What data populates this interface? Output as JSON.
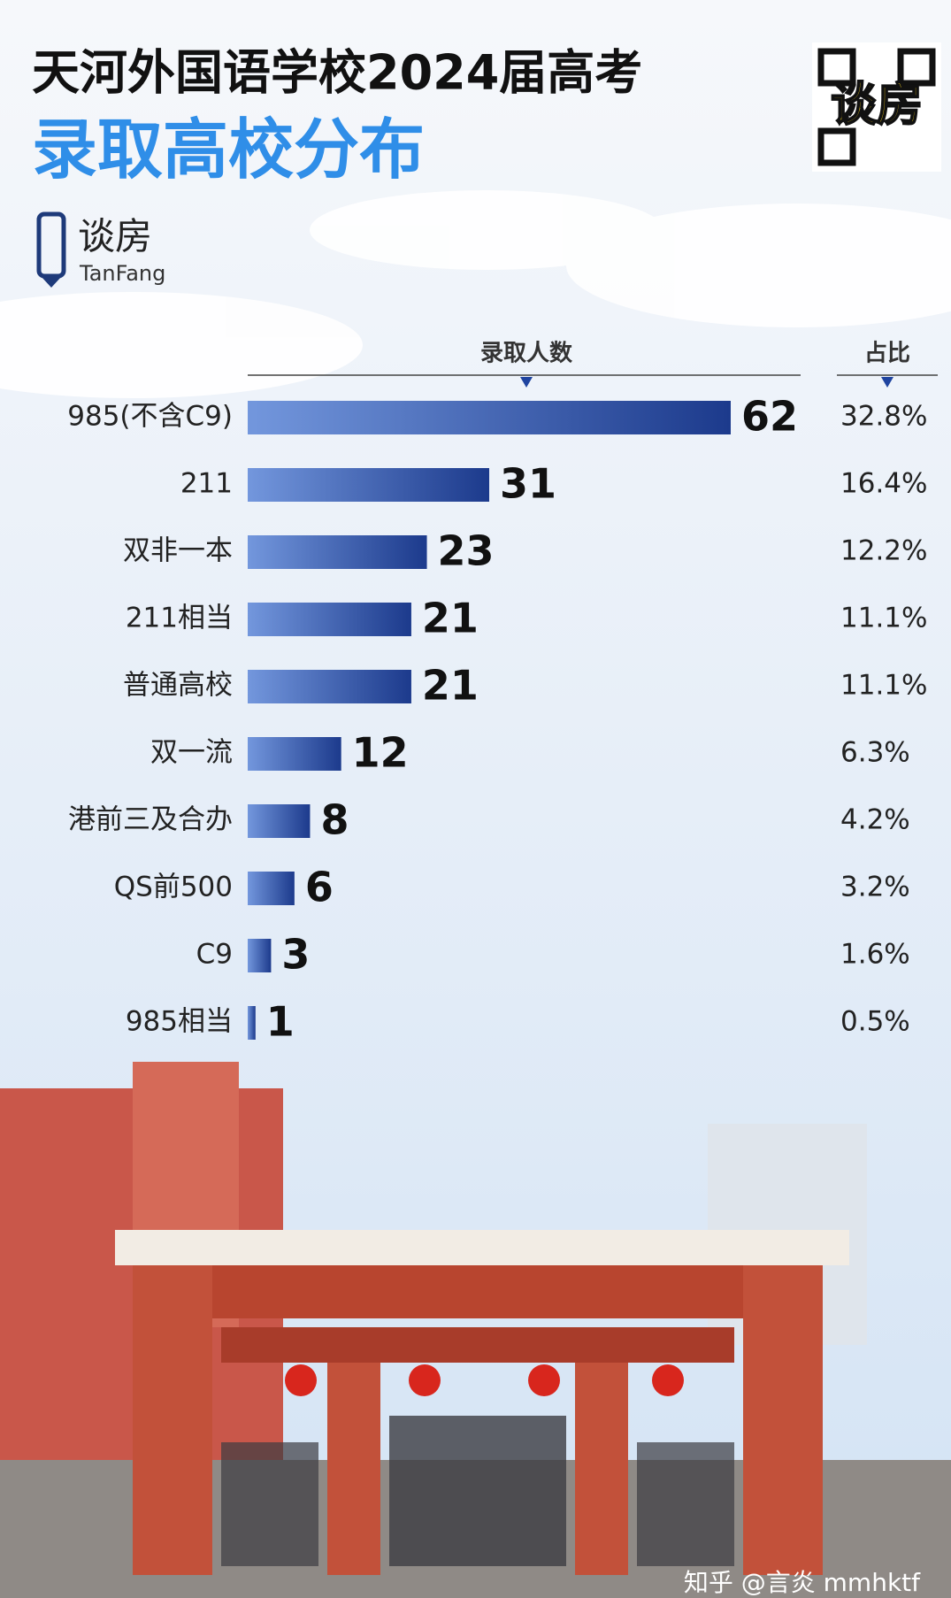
{
  "chart_data": {
    "type": "bar",
    "orientation": "horizontal",
    "title": "天河外国语学校2024届高考",
    "subtitle": "录取高校分布",
    "brand": "谈房",
    "brand_en": "TanFang",
    "qr_text": "谈房",
    "footer": "知乎 @言炎 mmhktf",
    "categories": [
      "985(不含C9)",
      "211",
      "双非一本",
      "211相当",
      "普通高校",
      "双一流",
      "港前三及合办",
      "QS前500",
      "C9",
      "985相当"
    ],
    "series": [
      {
        "name": "录取人数",
        "color": "#1f44a0",
        "values": [
          62,
          31,
          23,
          21,
          21,
          12,
          8,
          6,
          3,
          1
        ]
      },
      {
        "name": "占比",
        "values": [
          32.8,
          16.4,
          12.2,
          11.1,
          11.1,
          6.3,
          4.2,
          3.2,
          1.6,
          0.5
        ],
        "value_labels": [
          "32.8%",
          "16.4%",
          "12.2%",
          "11.1%",
          "11.1%",
          "6.3%",
          "4.2%",
          "3.2%",
          "1.6%",
          "0.5%"
        ]
      }
    ]
  }
}
